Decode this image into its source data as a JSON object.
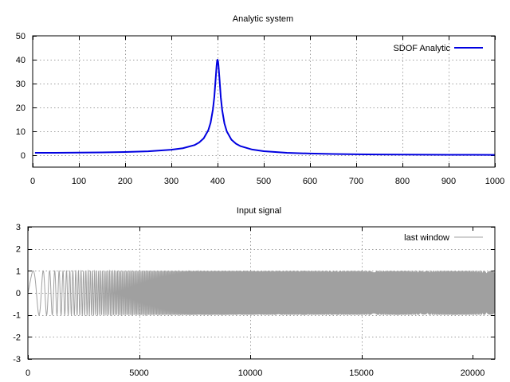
{
  "chart_data": [
    {
      "type": "line",
      "title": "Analytic system",
      "xlabel": "",
      "ylabel": "",
      "xlim": [
        0,
        1000
      ],
      "ylim": [
        -5,
        50
      ],
      "xticks": [
        0,
        100,
        200,
        300,
        400,
        500,
        600,
        700,
        800,
        900,
        1000
      ],
      "xtick_labels": [
        "0",
        "100",
        "200",
        "300",
        "400",
        "500",
        "600",
        "700",
        "800",
        "900",
        "1000"
      ],
      "yticks": [
        0,
        10,
        20,
        30,
        40,
        50
      ],
      "ytick_labels": [
        "0",
        "10",
        "20",
        "30",
        "40",
        "50"
      ],
      "grid": true,
      "legend_position": "top-right",
      "series": [
        {
          "name": "SDOF Analytic",
          "color": "#0000e0",
          "x": [
            5,
            50,
            100,
            150,
            200,
            250,
            300,
            325,
            350,
            360,
            370,
            380,
            385,
            390,
            393,
            396,
            398,
            399,
            400,
            401,
            402,
            404,
            407,
            410,
            415,
            420,
            430,
            440,
            450,
            475,
            500,
            550,
            600,
            650,
            700,
            750,
            800,
            850,
            900,
            950,
            1000
          ],
          "y": [
            1.0,
            1.02,
            1.07,
            1.16,
            1.33,
            1.64,
            2.29,
            2.91,
            4.22,
            5.29,
            7.05,
            10.45,
            13.6,
            19.2,
            24.4,
            32.2,
            37.6,
            39.4,
            40.0,
            39.4,
            37.7,
            32.6,
            24.3,
            18.9,
            13.2,
            9.97,
            6.51,
            4.79,
            3.76,
            2.36,
            1.68,
            1.01,
            0.69,
            0.51,
            0.39,
            0.31,
            0.25,
            0.21,
            0.17,
            0.15,
            0.13
          ]
        }
      ]
    },
    {
      "type": "line",
      "title": "Input signal",
      "xlabel": "",
      "ylabel": "",
      "xlim": [
        0,
        21000
      ],
      "ylim": [
        -3,
        3
      ],
      "xticks": [
        0,
        5000,
        10000,
        15000,
        20000
      ],
      "xtick_labels": [
        "0",
        "5000",
        "10000",
        "15000",
        "20000"
      ],
      "yticks": [
        -3,
        -2,
        -1,
        0,
        1,
        2,
        3
      ],
      "ytick_labels": [
        "-3",
        "-2",
        "-1",
        "0",
        "1",
        "2",
        "3"
      ],
      "grid": true,
      "legend_position": "top-right",
      "series": [
        {
          "name": "last window",
          "color": "#a0a0a0",
          "signal": "linear chirp",
          "amplitude": 1,
          "x_start": 0,
          "x_end": 21000
        }
      ]
    }
  ]
}
